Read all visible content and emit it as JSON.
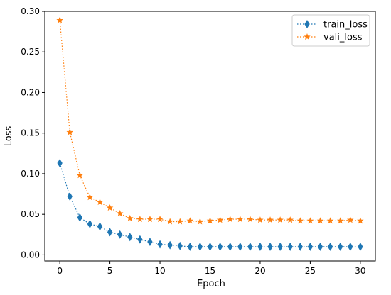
{
  "chart_data": {
    "type": "line",
    "xlabel": "Epoch",
    "ylabel": "Loss",
    "xlim": [
      -1.5,
      31.5
    ],
    "ylim": [
      -0.0075,
      0.3
    ],
    "x_ticks": [
      0,
      5,
      10,
      15,
      20,
      25,
      30
    ],
    "y_ticks": [
      0.0,
      0.05,
      0.1,
      0.15,
      0.2,
      0.25,
      0.3
    ],
    "x_tick_labels": [
      "0",
      "5",
      "10",
      "15",
      "20",
      "25",
      "30"
    ],
    "y_tick_labels": [
      "0.00",
      "0.05",
      "0.10",
      "0.15",
      "0.20",
      "0.25",
      "0.30"
    ],
    "legend_position": "top-right",
    "grid": false,
    "x": [
      0,
      1,
      2,
      3,
      4,
      5,
      6,
      7,
      8,
      9,
      10,
      11,
      12,
      13,
      14,
      15,
      16,
      17,
      18,
      19,
      20,
      21,
      22,
      23,
      24,
      25,
      26,
      27,
      28,
      29,
      30
    ],
    "series": [
      {
        "name": "train_loss",
        "color": "#1f77b4",
        "marker": "diamond",
        "linestyle": "dotted",
        "values": [
          0.113,
          0.072,
          0.046,
          0.038,
          0.035,
          0.028,
          0.025,
          0.022,
          0.019,
          0.016,
          0.013,
          0.012,
          0.011,
          0.01,
          0.01,
          0.01,
          0.01,
          0.01,
          0.01,
          0.01,
          0.01,
          0.01,
          0.01,
          0.01,
          0.01,
          0.01,
          0.01,
          0.01,
          0.01,
          0.01,
          0.01
        ]
      },
      {
        "name": "vali_loss",
        "color": "#ff7f0e",
        "marker": "star",
        "linestyle": "dotted",
        "values": [
          0.289,
          0.151,
          0.098,
          0.071,
          0.065,
          0.058,
          0.051,
          0.045,
          0.044,
          0.044,
          0.044,
          0.041,
          0.041,
          0.042,
          0.041,
          0.042,
          0.043,
          0.044,
          0.044,
          0.044,
          0.043,
          0.043,
          0.043,
          0.043,
          0.042,
          0.042,
          0.042,
          0.042,
          0.042,
          0.043,
          0.042
        ]
      }
    ]
  }
}
